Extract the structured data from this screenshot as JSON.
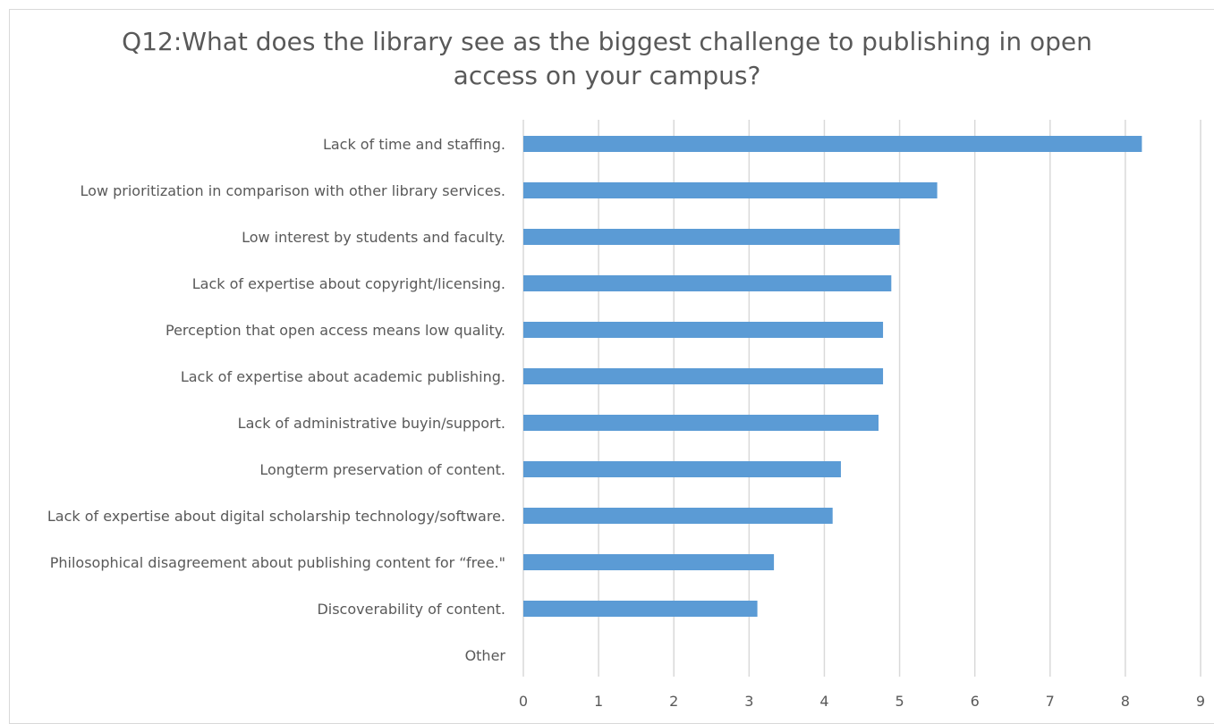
{
  "chart_data": {
    "type": "bar",
    "orientation": "horizontal",
    "title_lines": [
      "Q12:What does the library see as the biggest challenge to publishing in open",
      "access on your campus?"
    ],
    "categories": [
      "Lack of time and staffing.",
      "Low prioritization in comparison with other library services.",
      "Low interest by students and faculty.",
      "Lack of expertise about copyright/licensing.",
      "Perception that open access means low quality.",
      "Lack of expertise about academic publishing.",
      "Lack of administrative buyin/support.",
      "Longterm preservation of content.",
      "Lack of expertise about digital scholarship technology/software.",
      "Philosophical disagreement about publishing content for “free.\"",
      "Discoverability of content.",
      "Other"
    ],
    "values": [
      8.22,
      5.5,
      5.0,
      4.89,
      4.78,
      4.78,
      4.72,
      4.22,
      4.11,
      3.33,
      3.11,
      0
    ],
    "xlim": [
      0,
      9
    ],
    "xticks": [
      "0",
      "1",
      "2",
      "3",
      "4",
      "5",
      "6",
      "7",
      "8",
      "9"
    ],
    "bar_color": "#5b9bd5",
    "grid_color": "#d9d9d9",
    "gridlines": true,
    "legend": "none"
  }
}
